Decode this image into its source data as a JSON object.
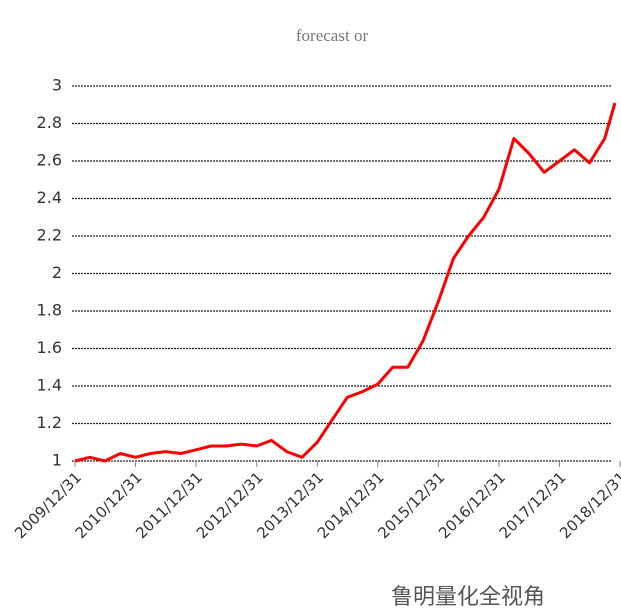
{
  "chart_data": {
    "type": "line",
    "title": "forecast or",
    "x": [
      "2009/12/31",
      "2010/03/31",
      "2010/06/30",
      "2010/09/30",
      "2010/12/31",
      "2011/03/31",
      "2011/06/30",
      "2011/09/30",
      "2011/12/31",
      "2012/03/31",
      "2012/06/30",
      "2012/09/30",
      "2012/12/31",
      "2013/03/31",
      "2013/06/30",
      "2013/09/30",
      "2013/12/31",
      "2014/03/31",
      "2014/06/30",
      "2014/09/30",
      "2014/12/31",
      "2015/03/31",
      "2015/06/30",
      "2015/09/30",
      "2015/12/31",
      "2016/03/31",
      "2016/06/30",
      "2016/09/30",
      "2016/12/31",
      "2017/03/31",
      "2017/06/30",
      "2017/09/30",
      "2017/12/31",
      "2018/03/31",
      "2018/06/30",
      "2018/09/30",
      "2018/11/30"
    ],
    "series": [
      {
        "color": "#ff0000",
        "values": [
          1.0,
          1.02,
          1.0,
          1.04,
          1.02,
          1.04,
          1.05,
          1.04,
          1.06,
          1.08,
          1.08,
          1.09,
          1.08,
          1.11,
          1.05,
          1.02,
          1.1,
          1.22,
          1.34,
          1.37,
          1.41,
          1.5,
          1.5,
          1.64,
          1.85,
          2.08,
          2.2,
          2.3,
          2.45,
          2.72,
          2.64,
          2.54,
          2.6,
          2.66,
          2.59,
          2.72,
          2.91
        ]
      }
    ],
    "xlim": [
      "2009/12/31",
      "2018/12/31"
    ],
    "xticks": [
      "2009/12/31",
      "2010/12/31",
      "2011/12/31",
      "2012/12/31",
      "2013/12/31",
      "2014/12/31",
      "2015/12/31",
      "2016/12/31",
      "2017/12/31",
      "2018/12/31"
    ],
    "ylim": [
      1,
      3
    ],
    "yticks": [
      1,
      1.2,
      1.4,
      1.6,
      1.8,
      2,
      2.2,
      2.4,
      2.6,
      2.8,
      3
    ],
    "grid": true,
    "watermark": "鲁明量化全视角"
  }
}
